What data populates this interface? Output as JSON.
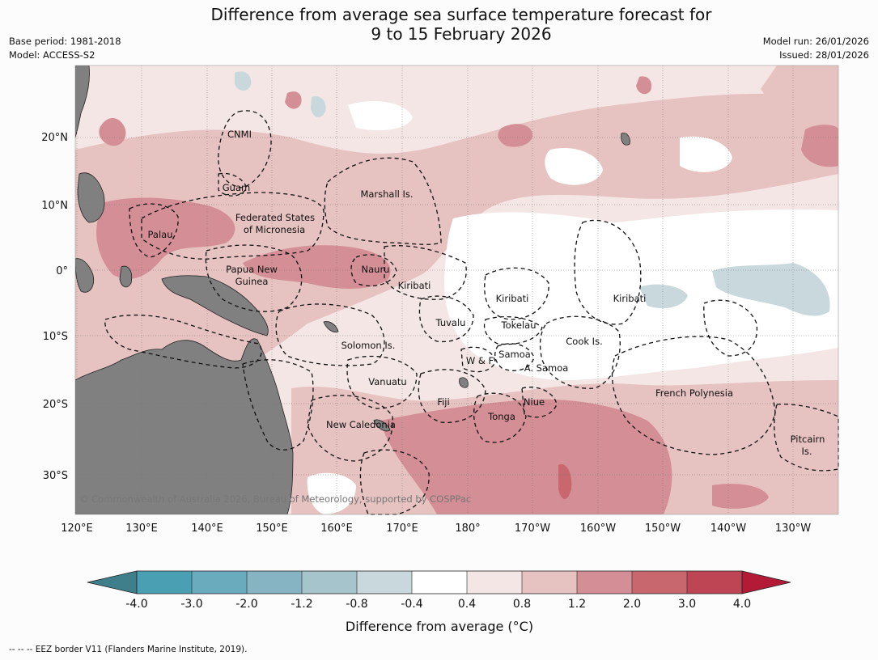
{
  "header": {
    "title_line1": "Difference from average sea surface temperature forecast for",
    "title_line2": "9 to 15 February 2026",
    "base_period": "Base period: 1981-2018",
    "model": "Model: ACCESS-S2",
    "model_run": "Model run: 26/01/2026",
    "issued": "Issued: 28/01/2026"
  },
  "map": {
    "lat_labels": [
      "20°N",
      "10°N",
      "0°",
      "10°S",
      "20°S",
      "30°S"
    ],
    "lon_labels": [
      "120°E",
      "130°E",
      "140°E",
      "150°E",
      "160°E",
      "170°E",
      "180°",
      "170°W",
      "160°W",
      "150°W",
      "140°W",
      "130°W"
    ],
    "copyright": "© Commonwealth of Australia 2026, Bureau of Meteorology, supported by COSPPac",
    "places": {
      "cnmi": "CNMI",
      "guam": "Guam",
      "marshall": "Marshall Is.",
      "fsm_1": "Federated States",
      "fsm_2": "of Micronesia",
      "palau": "Palau",
      "png_1": "Papua New",
      "png_2": "Guinea",
      "nauru": "Nauru",
      "kiribati_w": "Kiribati",
      "kiribati_c": "Kiribati",
      "kiribati_e": "Kiribati",
      "tuvalu": "Tuvalu",
      "tokelau": "Tokelau",
      "cook": "Cook Is.",
      "solomon": "Solomon Is.",
      "samoa": "Samoa",
      "wf": "W & F",
      "asamoa": "A. Samoa",
      "vanuatu": "Vanuatu",
      "fiji": "Fiji",
      "niue": "Niue",
      "tonga": "Tonga",
      "frenchpoly": "French Polynesia",
      "newcal": "New Caledonia",
      "pitcairn_1": "Pitcairn",
      "pitcairn_2": "Is."
    }
  },
  "colors": {
    "neg_4": "#3f7f8c",
    "neg_3_4": "#4aa0b2",
    "neg_2_3": "#6aacbd",
    "neg_12_2": "#87b4c2",
    "neg_08_12": "#a6c4cb",
    "neg_04_08": "#c8d8dc",
    "neutral": "#ffffff",
    "pos_04_08": "#f4e6e5",
    "pos_08_12": "#e6c2c0",
    "pos_12_2": "#d48e95",
    "pos_2_3": "#c9676f",
    "pos_3_4": "#be4553",
    "pos_4": "#b31a35",
    "land": "#808080"
  },
  "colorbar": {
    "ticks": [
      "-4.0",
      "-3.0",
      "-2.0",
      "-1.2",
      "-0.8",
      "-0.4",
      "0.4",
      "0.8",
      "1.2",
      "2.0",
      "3.0",
      "4.0"
    ],
    "label": "Difference from average (°C)"
  },
  "footer": {
    "legend": "--  --  -- EEZ border V11 (Flanders Marine Institute, 2019)."
  }
}
